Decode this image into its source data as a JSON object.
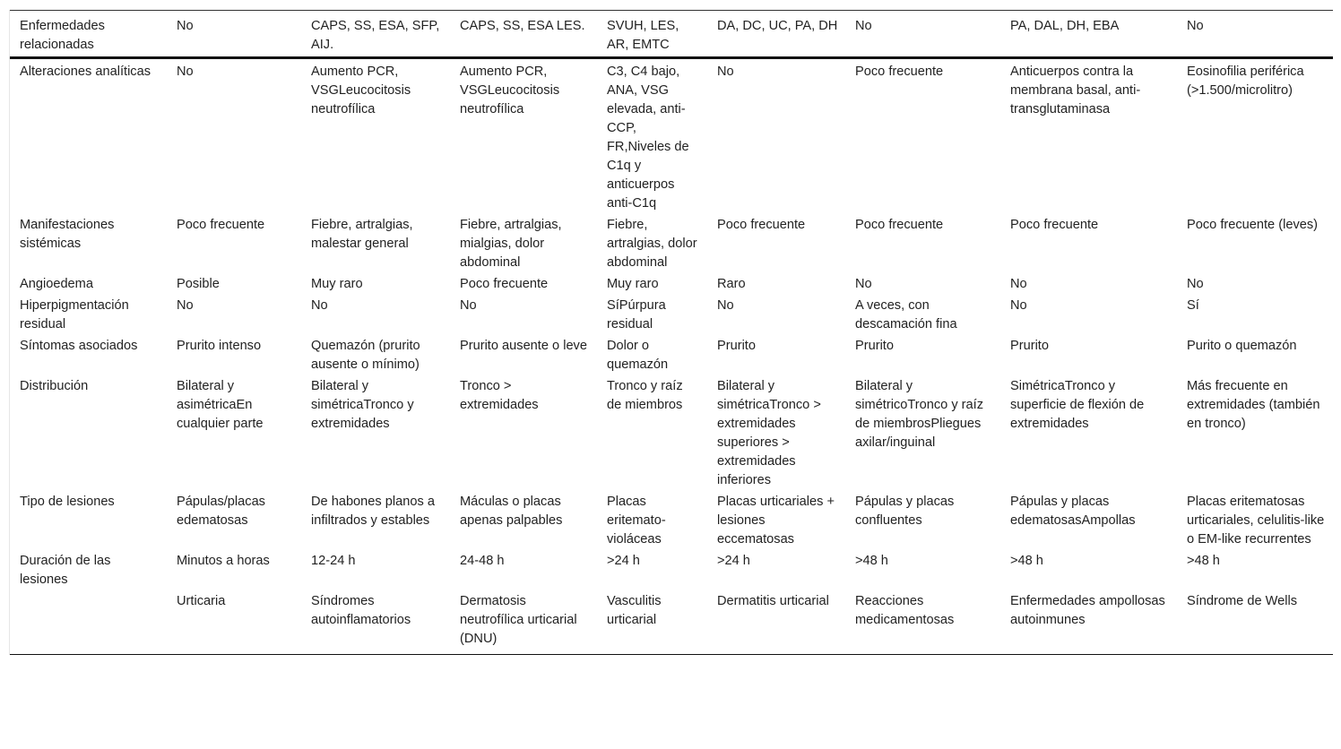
{
  "rows": [
    [
      "Enfermedades relacionadas",
      "No",
      "CAPS, SS, ESA, SFP, AIJ.",
      "CAPS, SS, ESA LES.",
      "SVUH, LES, AR, EMTC",
      "DA, DC, UC, PA, DH",
      "No",
      "PA, DAL, DH, EBA",
      "No"
    ],
    [
      "Alteraciones analíticas",
      "No",
      "Aumento PCR, VSGLeucocitosis neutrofílica",
      "Aumento PCR, VSGLeucocitosis neutrofílica",
      "C3, C4 bajo, ANA, VSG elevada, anti-CCP, FR,Niveles de C1q y anticuerpos anti-C1q",
      "No",
      "Poco frecuente",
      "Anticuerpos contra la membrana basal, anti-transglutaminasa",
      "Eosinofilia periférica (>1.500/microlitro)"
    ],
    [
      "Manifestaciones sistémicas",
      "Poco frecuente",
      "Fiebre, artralgias, malestar general",
      "Fiebre, artralgias, mialgias, dolor abdominal",
      "Fiebre, artralgias, dolor abdominal",
      "Poco frecuente",
      "Poco frecuente",
      "Poco frecuente",
      "Poco frecuente (leves)"
    ],
    [
      "Angioedema",
      "Posible",
      "Muy raro",
      "Poco frecuente",
      "Muy raro",
      "Raro",
      "No",
      "No",
      "No"
    ],
    [
      "Hiperpigmentación residual",
      "No",
      "No",
      "No",
      "SíPúrpura residual",
      "No",
      "A veces, con descamación fina",
      "No",
      "Sí"
    ],
    [
      "Síntomas asociados",
      "Prurito intenso",
      "Quemazón (prurito ausente o mínimo)",
      "Prurito ausente o leve",
      "Dolor o quemazón",
      "Prurito",
      "Prurito",
      "Prurito",
      "Purito o quemazón"
    ],
    [
      "Distribución",
      "Bilateral y asimétricaEn cualquier parte",
      "Bilateral y simétricaTronco y extremidades",
      "Tronco > extremidades",
      "Tronco y raíz de miembros",
      "Bilateral y simétricaTronco > extremidades superiores > extremidades inferiores",
      "Bilateral y simétricoTronco y raíz de miembrosPliegues axilar/inguinal",
      "SimétricaTronco y superficie de flexión de extremidades",
      "Más frecuente en extremidades (también en tronco)"
    ],
    [
      "Tipo de lesiones",
      "Pápulas/placas edematosas",
      "De habones planos a infiltrados y estables",
      "Máculas o placas apenas palpables",
      "Placas eritemato-violáceas",
      "Placas urticariales + lesiones eccematosas",
      "Pápulas y placas confluentes",
      "Pápulas y placas edematosasAmpollas",
      "Placas eritematosas urticariales, celulitis-like o EM-like recurrentes"
    ],
    [
      "Duración de las lesiones",
      "Minutos a horas",
      "12-24 h",
      "24-48 h",
      ">24 h",
      ">24 h",
      ">48 h",
      ">48 h",
      ">48 h"
    ],
    [
      "",
      "Urticaria",
      "Síndromes autoinflamatorios",
      "Dermatosis neutrofílica urticarial (DNU)",
      "Vasculitis urticarial",
      "Dermatitis urticarial",
      "Reacciones medicamentosas",
      "Enfermedades ampollosas autoinmunes",
      "Síndrome de Wells"
    ]
  ]
}
